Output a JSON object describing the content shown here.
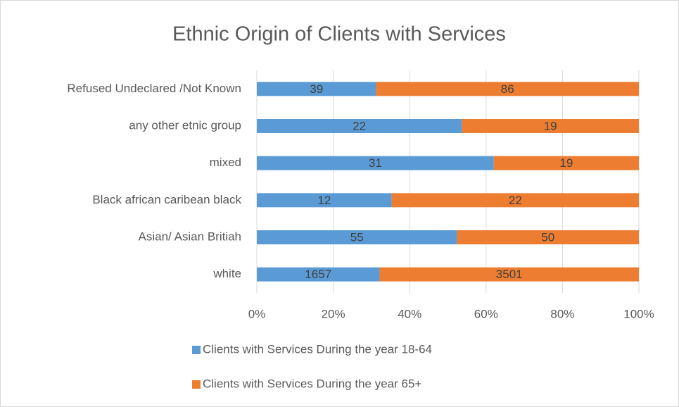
{
  "chart_data": {
    "type": "bar",
    "orientation": "horizontal",
    "stacked": "percent",
    "title": "Ethnic Origin of Clients with Services",
    "categories": [
      "Refused Undeclared /Not Known",
      "any other etnic group",
      "mixed",
      "Black african caribean black",
      "Asian/ Asian Britiah",
      "white"
    ],
    "series": [
      {
        "name": "Clients with Services During the year  18-64",
        "color": "#5b9bd5",
        "values": [
          39,
          22,
          31,
          12,
          55,
          1657
        ]
      },
      {
        "name": "Clients with Services During the year  65+",
        "color": "#ed7d31",
        "values": [
          86,
          19,
          19,
          22,
          50,
          3501
        ]
      }
    ],
    "xlim": [
      0,
      100
    ],
    "xticks": [
      {
        "value": 0,
        "label": "0%"
      },
      {
        "value": 20,
        "label": "20%"
      },
      {
        "value": 40,
        "label": "40%"
      },
      {
        "value": 60,
        "label": "60%"
      },
      {
        "value": 80,
        "label": "80%"
      },
      {
        "value": 100,
        "label": "100%"
      }
    ],
    "grid": true,
    "legend": "bottom"
  }
}
